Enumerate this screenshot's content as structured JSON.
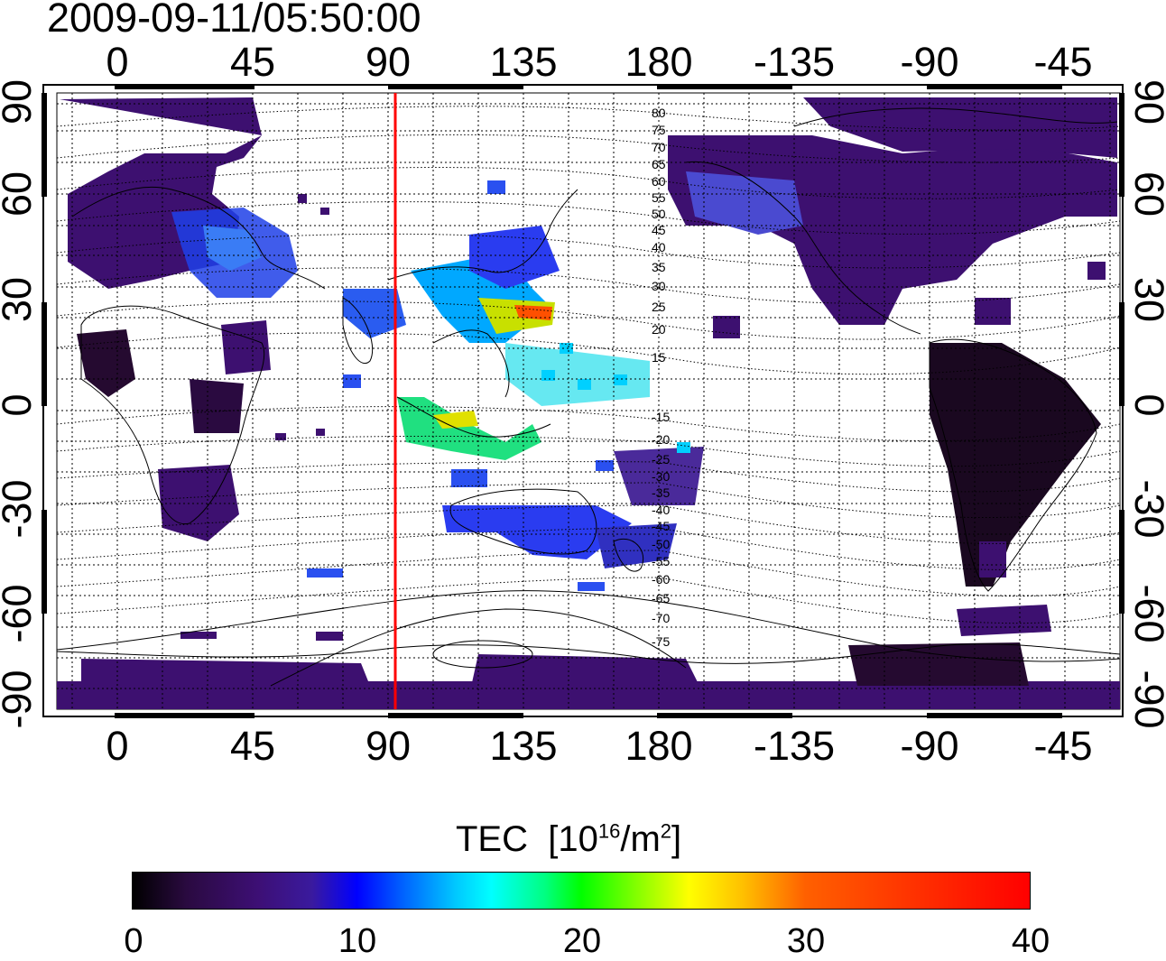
{
  "timestamp": "2009-09-11/05:50:00",
  "map": {
    "top_lon_labels": [
      "0",
      "45",
      "90",
      "135",
      "180",
      "-135",
      "-90",
      "-45"
    ],
    "bottom_lon_labels": [
      "0",
      "45",
      "90",
      "135",
      "180",
      "-135",
      "-90",
      "-45"
    ],
    "left_lat_labels": [
      "90",
      "60",
      "30",
      "0",
      "-30",
      "-60",
      "-90"
    ],
    "right_lat_labels": [
      "90",
      "60",
      "30",
      "0",
      "-30",
      "-60",
      "-90"
    ],
    "marker_line_longitude": 92,
    "marker_color": "#ff0000",
    "maglat_contour_labels": [
      "80",
      "75",
      "70",
      "65",
      "60",
      "55",
      "50",
      "45",
      "40",
      "35",
      "30",
      "25",
      "20",
      "15",
      "-15",
      "-20",
      "-25",
      "-30",
      "-35",
      "-40",
      "-45",
      "-50",
      "-55",
      "-60",
      "-65",
      "-70",
      "-75"
    ]
  },
  "colorbar": {
    "title": "TEC",
    "unit_base": "10",
    "unit_exp": "16",
    "unit_mid": "/m",
    "unit_exp2": "2",
    "ticks": [
      "0",
      "10",
      "20",
      "30",
      "40"
    ],
    "range": [
      0,
      40
    ]
  }
}
